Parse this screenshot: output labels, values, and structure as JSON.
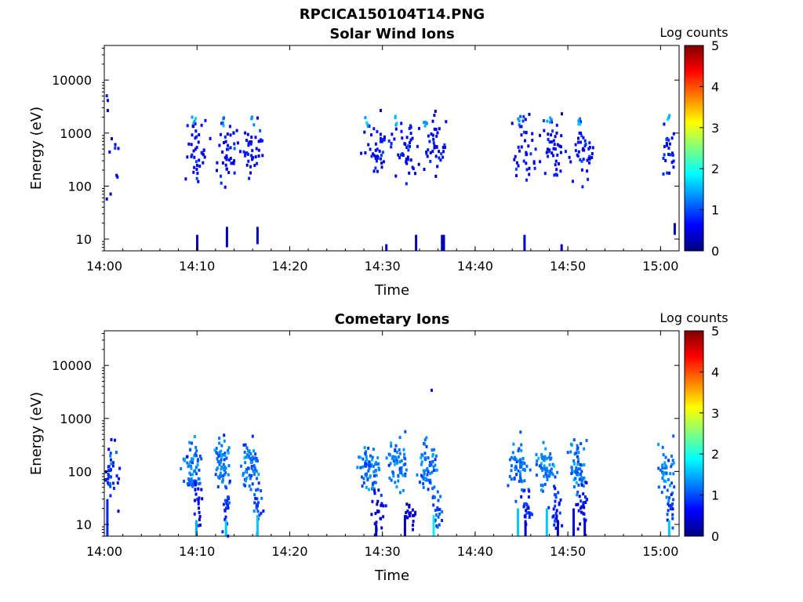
{
  "figure": {
    "title": "RPCICA150104T14.PNG"
  },
  "colorscale": {
    "stops": [
      "#00007f",
      "#0000ff",
      "#007fff",
      "#00ffff",
      "#7fff7f",
      "#ffff00",
      "#ff7f00",
      "#ff0000",
      "#7f0000"
    ],
    "domain": [
      0,
      5
    ]
  },
  "chart_data": [
    {
      "type": "heatmap",
      "title": "Solar Wind Ions",
      "xlabel": "Time",
      "ylabel": "Energy (eV)",
      "y_scale": "log",
      "ylim": [
        6,
        45000
      ],
      "xlim": [
        "14:00",
        "15:02"
      ],
      "x_ticks": [
        "14:00",
        "14:10",
        "14:20",
        "14:30",
        "14:40",
        "14:50",
        "15:00"
      ],
      "y_ticks": [
        "10",
        "100",
        "1000",
        "10000"
      ],
      "colorbar": {
        "label": "Log counts",
        "ticks": [
          "0",
          "1",
          "2",
          "3",
          "4",
          "5"
        ],
        "range": [
          0,
          5
        ]
      },
      "clusters": [
        {
          "t": 0.5,
          "e": 400,
          "n": 22,
          "spreadT": 1.0,
          "spreadE": 0.7,
          "v": 0.5
        },
        {
          "t": 10.0,
          "e": 500,
          "n": 40,
          "spreadT": 1.0,
          "spreadE": 0.5,
          "v": 0.6
        },
        {
          "t": 13.0,
          "e": 500,
          "n": 40,
          "spreadT": 1.0,
          "spreadE": 0.5,
          "v": 0.6
        },
        {
          "t": 16.0,
          "e": 500,
          "n": 40,
          "spreadT": 1.0,
          "spreadE": 0.5,
          "v": 0.6
        },
        {
          "t": 9.5,
          "e": 1700,
          "n": 4,
          "spreadT": 0.2,
          "spreadE": 0.1,
          "v": 1.4
        },
        {
          "t": 12.7,
          "e": 1700,
          "n": 4,
          "spreadT": 0.2,
          "spreadE": 0.1,
          "v": 1.4
        },
        {
          "t": 15.8,
          "e": 1700,
          "n": 4,
          "spreadT": 0.2,
          "spreadE": 0.1,
          "v": 1.4
        },
        {
          "t": 29.5,
          "e": 500,
          "n": 45,
          "spreadT": 1.2,
          "spreadE": 0.5,
          "v": 0.6
        },
        {
          "t": 32.5,
          "e": 500,
          "n": 40,
          "spreadT": 1.2,
          "spreadE": 0.5,
          "v": 0.6
        },
        {
          "t": 35.5,
          "e": 500,
          "n": 40,
          "spreadT": 1.0,
          "spreadE": 0.5,
          "v": 0.6
        },
        {
          "t": 28.2,
          "e": 1700,
          "n": 4,
          "spreadT": 0.2,
          "spreadE": 0.1,
          "v": 1.4
        },
        {
          "t": 31.4,
          "e": 1700,
          "n": 4,
          "spreadT": 0.2,
          "spreadE": 0.1,
          "v": 1.4
        },
        {
          "t": 34.6,
          "e": 1700,
          "n": 4,
          "spreadT": 0.2,
          "spreadE": 0.1,
          "v": 1.4
        },
        {
          "t": 45.5,
          "e": 500,
          "n": 40,
          "spreadT": 1.2,
          "spreadE": 0.5,
          "v": 0.6
        },
        {
          "t": 48.5,
          "e": 500,
          "n": 40,
          "spreadT": 1.2,
          "spreadE": 0.5,
          "v": 0.6
        },
        {
          "t": 51.5,
          "e": 500,
          "n": 40,
          "spreadT": 1.2,
          "spreadE": 0.5,
          "v": 0.6
        },
        {
          "t": 44.7,
          "e": 1700,
          "n": 4,
          "spreadT": 0.2,
          "spreadE": 0.1,
          "v": 1.4
        },
        {
          "t": 47.9,
          "e": 1700,
          "n": 4,
          "spreadT": 0.2,
          "spreadE": 0.1,
          "v": 1.4
        },
        {
          "t": 51.1,
          "e": 1700,
          "n": 4,
          "spreadT": 0.2,
          "spreadE": 0.1,
          "v": 1.4
        },
        {
          "t": 60.8,
          "e": 500,
          "n": 25,
          "spreadT": 0.6,
          "spreadE": 0.5,
          "v": 0.7
        },
        {
          "t": 60.8,
          "e": 1700,
          "n": 3,
          "spreadT": 0.2,
          "spreadE": 0.1,
          "v": 1.4
        }
      ],
      "streaks": [
        {
          "t": 9.9,
          "e1": 6,
          "e2": 12,
          "v": 0.3
        },
        {
          "t": 13.1,
          "e1": 7,
          "e2": 17,
          "v": 0.3
        },
        {
          "t": 16.4,
          "e1": 8,
          "e2": 17,
          "v": 0.3
        },
        {
          "t": 30.3,
          "e1": 6,
          "e2": 8,
          "v": 0.3
        },
        {
          "t": 33.5,
          "e1": 6,
          "e2": 12,
          "v": 0.3
        },
        {
          "t": 36.3,
          "e1": 6,
          "e2": 12,
          "v": 0.3
        },
        {
          "t": 36.5,
          "e1": 6,
          "e2": 12,
          "v": 0.3
        },
        {
          "t": 45.2,
          "e1": 6,
          "e2": 12,
          "v": 0.3
        },
        {
          "t": 49.2,
          "e1": 6,
          "e2": 8,
          "v": 0.3
        },
        {
          "t": 61.4,
          "e1": 12,
          "e2": 20,
          "v": 0.3
        }
      ]
    },
    {
      "type": "heatmap",
      "title": "Cometary Ions",
      "xlabel": "Time",
      "ylabel": "Energy (eV)",
      "y_scale": "log",
      "ylim": [
        6,
        45000
      ],
      "xlim": [
        "14:00",
        "15:02"
      ],
      "x_ticks": [
        "14:00",
        "14:10",
        "14:20",
        "14:30",
        "14:40",
        "14:50",
        "15:00"
      ],
      "y_ticks": [
        "10",
        "100",
        "1000",
        "10000"
      ],
      "colorbar": {
        "label": "Log counts",
        "ticks": [
          "0",
          "1",
          "2",
          "3",
          "4",
          "5"
        ],
        "range": [
          0,
          5
        ]
      },
      "clusters": [
        {
          "t": 0.5,
          "e": 100,
          "n": 40,
          "spreadT": 0.7,
          "spreadE": 0.5,
          "v": 0.8
        },
        {
          "t": 9.3,
          "e": 150,
          "n": 60,
          "spreadT": 0.8,
          "spreadE": 0.4,
          "v": 1.2
        },
        {
          "t": 12.5,
          "e": 130,
          "n": 60,
          "spreadT": 0.8,
          "spreadE": 0.4,
          "v": 1.2
        },
        {
          "t": 15.5,
          "e": 130,
          "n": 60,
          "spreadT": 0.8,
          "spreadE": 0.4,
          "v": 1.2
        },
        {
          "t": 28.5,
          "e": 120,
          "n": 70,
          "spreadT": 1.0,
          "spreadE": 0.4,
          "v": 1.2
        },
        {
          "t": 31.5,
          "e": 130,
          "n": 60,
          "spreadT": 0.9,
          "spreadE": 0.4,
          "v": 1.2
        },
        {
          "t": 34.8,
          "e": 120,
          "n": 60,
          "spreadT": 0.9,
          "spreadE": 0.4,
          "v": 1.2
        },
        {
          "t": 44.5,
          "e": 120,
          "n": 60,
          "spreadT": 0.9,
          "spreadE": 0.4,
          "v": 1.2
        },
        {
          "t": 47.5,
          "e": 120,
          "n": 60,
          "spreadT": 0.9,
          "spreadE": 0.4,
          "v": 1.2
        },
        {
          "t": 50.8,
          "e": 120,
          "n": 60,
          "spreadT": 0.9,
          "spreadE": 0.4,
          "v": 1.2
        },
        {
          "t": 60.5,
          "e": 100,
          "n": 45,
          "spreadT": 0.7,
          "spreadE": 0.4,
          "v": 1.2
        },
        {
          "t": 10.0,
          "e": 25,
          "n": 20,
          "spreadT": 0.4,
          "spreadE": 0.4,
          "v": 0.6
        },
        {
          "t": 13.1,
          "e": 20,
          "n": 20,
          "spreadT": 0.4,
          "spreadE": 0.4,
          "v": 0.9
        },
        {
          "t": 16.4,
          "e": 20,
          "n": 20,
          "spreadT": 0.4,
          "spreadE": 0.4,
          "v": 0.9
        },
        {
          "t": 29.5,
          "e": 20,
          "n": 25,
          "spreadT": 0.6,
          "spreadE": 0.4,
          "v": 0.5
        },
        {
          "t": 33.0,
          "e": 15,
          "n": 20,
          "spreadT": 0.6,
          "spreadE": 0.3,
          "v": 0.4
        },
        {
          "t": 35.8,
          "e": 20,
          "n": 20,
          "spreadT": 0.5,
          "spreadE": 0.4,
          "v": 1.0
        },
        {
          "t": 45.5,
          "e": 20,
          "n": 25,
          "spreadT": 0.5,
          "spreadE": 0.4,
          "v": 0.8
        },
        {
          "t": 48.5,
          "e": 20,
          "n": 25,
          "spreadT": 0.5,
          "spreadE": 0.4,
          "v": 0.8
        },
        {
          "t": 51.5,
          "e": 20,
          "n": 25,
          "spreadT": 0.5,
          "spreadE": 0.4,
          "v": 0.6
        },
        {
          "t": 61.0,
          "e": 20,
          "n": 15,
          "spreadT": 0.4,
          "spreadE": 0.4,
          "v": 0.9
        },
        {
          "t": 35.2,
          "e": 3500,
          "n": 1,
          "spreadT": 0.05,
          "spreadE": 0.02,
          "v": 0.8
        }
      ],
      "streaks": [
        {
          "t": 0.2,
          "e1": 6,
          "e2": 30,
          "v": 0.8
        },
        {
          "t": 9.8,
          "e1": 6,
          "e2": 12,
          "v": 1.5
        },
        {
          "t": 13.0,
          "e1": 6,
          "e2": 12,
          "v": 1.6
        },
        {
          "t": 16.4,
          "e1": 6,
          "e2": 15,
          "v": 1.6
        },
        {
          "t": 29.2,
          "e1": 6,
          "e2": 10,
          "v": 0.3
        },
        {
          "t": 32.3,
          "e1": 6,
          "e2": 15,
          "v": 0.3
        },
        {
          "t": 35.4,
          "e1": 6,
          "e2": 15,
          "v": 1.8
        },
        {
          "t": 44.5,
          "e1": 6,
          "e2": 20,
          "v": 1.6
        },
        {
          "t": 45.3,
          "e1": 6,
          "e2": 12,
          "v": 0.3
        },
        {
          "t": 47.6,
          "e1": 6,
          "e2": 20,
          "v": 1.6
        },
        {
          "t": 48.8,
          "e1": 6,
          "e2": 12,
          "v": 0.3
        },
        {
          "t": 50.5,
          "e1": 6,
          "e2": 20,
          "v": 0.6
        },
        {
          "t": 51.7,
          "e1": 6,
          "e2": 12,
          "v": 0.3
        },
        {
          "t": 60.8,
          "e1": 6,
          "e2": 12,
          "v": 1.6
        }
      ]
    }
  ]
}
